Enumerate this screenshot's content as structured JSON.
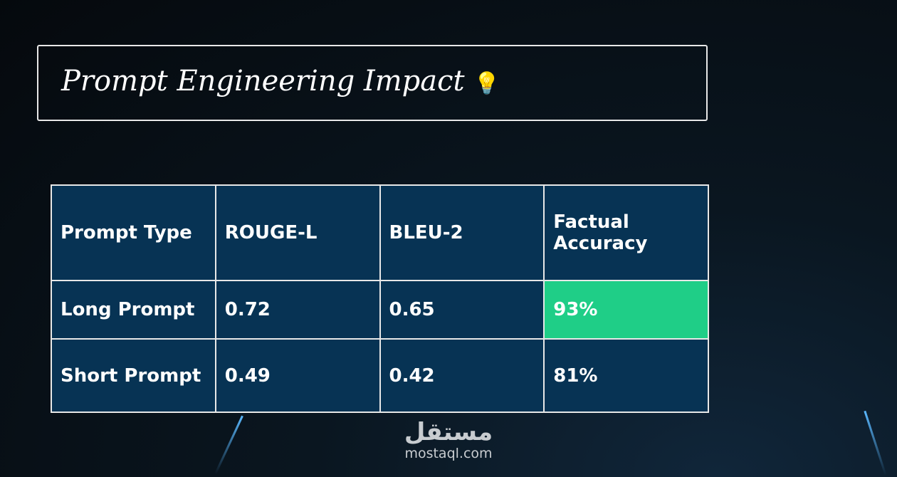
{
  "header": {
    "title": "Prompt Engineering Impact",
    "icon": "💡"
  },
  "table": {
    "columns": [
      "Prompt Type",
      "ROUGE-L",
      "BLEU-2",
      "Factual Accuracy"
    ],
    "rows": [
      [
        "Long Prompt",
        "0.72",
        "0.65",
        "93%"
      ],
      [
        "Short Prompt",
        "0.49",
        "0.42",
        "81%"
      ]
    ]
  },
  "watermark": {
    "arabic": "مستقل",
    "latin": "mostaql.com"
  }
}
